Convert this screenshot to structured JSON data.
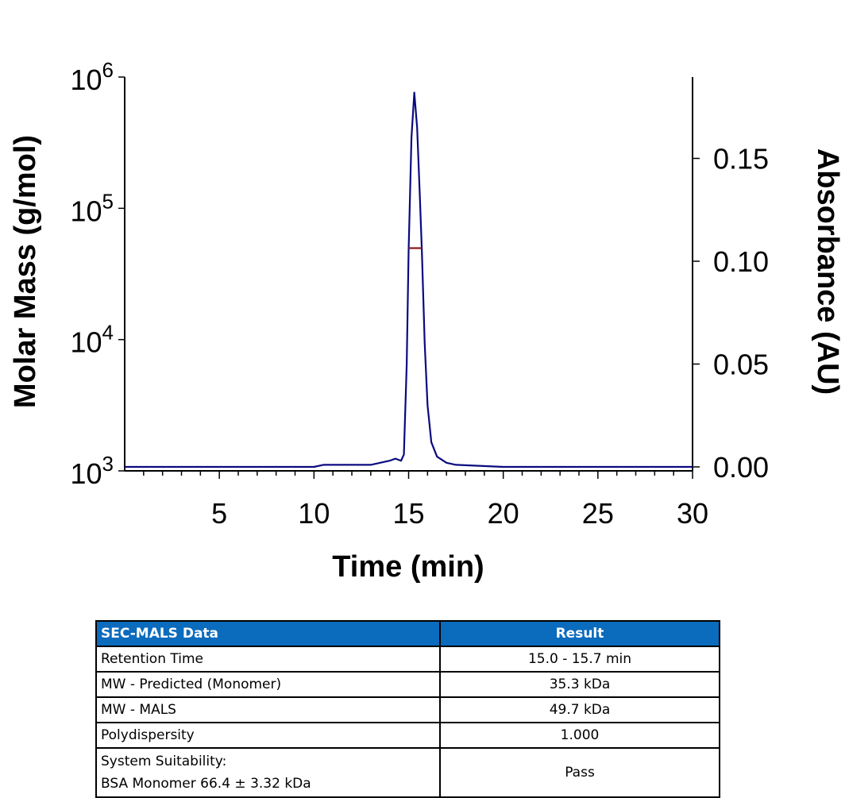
{
  "chart_data": {
    "type": "line",
    "xlabel": "Time (min)",
    "ylabel_left": "Molar Mass (g/mol)",
    "ylabel_right": "Absorbance (AU)",
    "xlim": [
      0,
      30
    ],
    "x_ticks": [
      5,
      10,
      15,
      20,
      25,
      30
    ],
    "y_left_scale": "log",
    "y_left_lim": [
      1000,
      1000000
    ],
    "y_left_ticks": [
      {
        "base": "10",
        "exp": "3",
        "value": 1000
      },
      {
        "base": "10",
        "exp": "4",
        "value": 10000
      },
      {
        "base": "10",
        "exp": "5",
        "value": 100000
      },
      {
        "base": "10",
        "exp": "6",
        "value": 1000000
      }
    ],
    "y_right_lim": [
      0,
      0.19
    ],
    "y_right_ticks": [
      "0.00",
      "0.05",
      "0.10",
      "0.15"
    ],
    "grid": false,
    "series": [
      {
        "axis": "right",
        "color": "#0a0a80",
        "x": [
          0,
          5,
          10,
          10.5,
          13,
          14,
          14.3,
          14.6,
          14.75,
          14.9,
          15.0,
          15.15,
          15.3,
          15.45,
          15.6,
          15.7,
          15.85,
          16.0,
          16.2,
          16.5,
          17,
          17.5,
          20,
          30
        ],
        "y": [
          0,
          0,
          0,
          0.001,
          0.001,
          0.003,
          0.004,
          0.003,
          0.006,
          0.05,
          0.105,
          0.16,
          0.182,
          0.165,
          0.13,
          0.105,
          0.06,
          0.03,
          0.012,
          0.005,
          0.002,
          0.001,
          0,
          0
        ]
      },
      {
        "axis": "left",
        "color": "#8b1a1a",
        "x": [
          15.0,
          15.7
        ],
        "y": [
          49700,
          49700
        ]
      }
    ]
  },
  "table": {
    "headers": [
      "SEC-MALS Data",
      "Result"
    ],
    "rows": [
      {
        "label": "Retention Time",
        "value": "15.0 - 15.7 min"
      },
      {
        "label": "MW - Predicted (Monomer)",
        "value": "35.3 kDa"
      },
      {
        "label": "MW - MALS",
        "value": "49.7 kDa"
      },
      {
        "label": "Polydispersity",
        "value": "1.000"
      },
      {
        "label": "System Suitability:",
        "label2": "BSA Monomer 66.4 ± 3.32 kDa",
        "value": "Pass"
      }
    ]
  }
}
